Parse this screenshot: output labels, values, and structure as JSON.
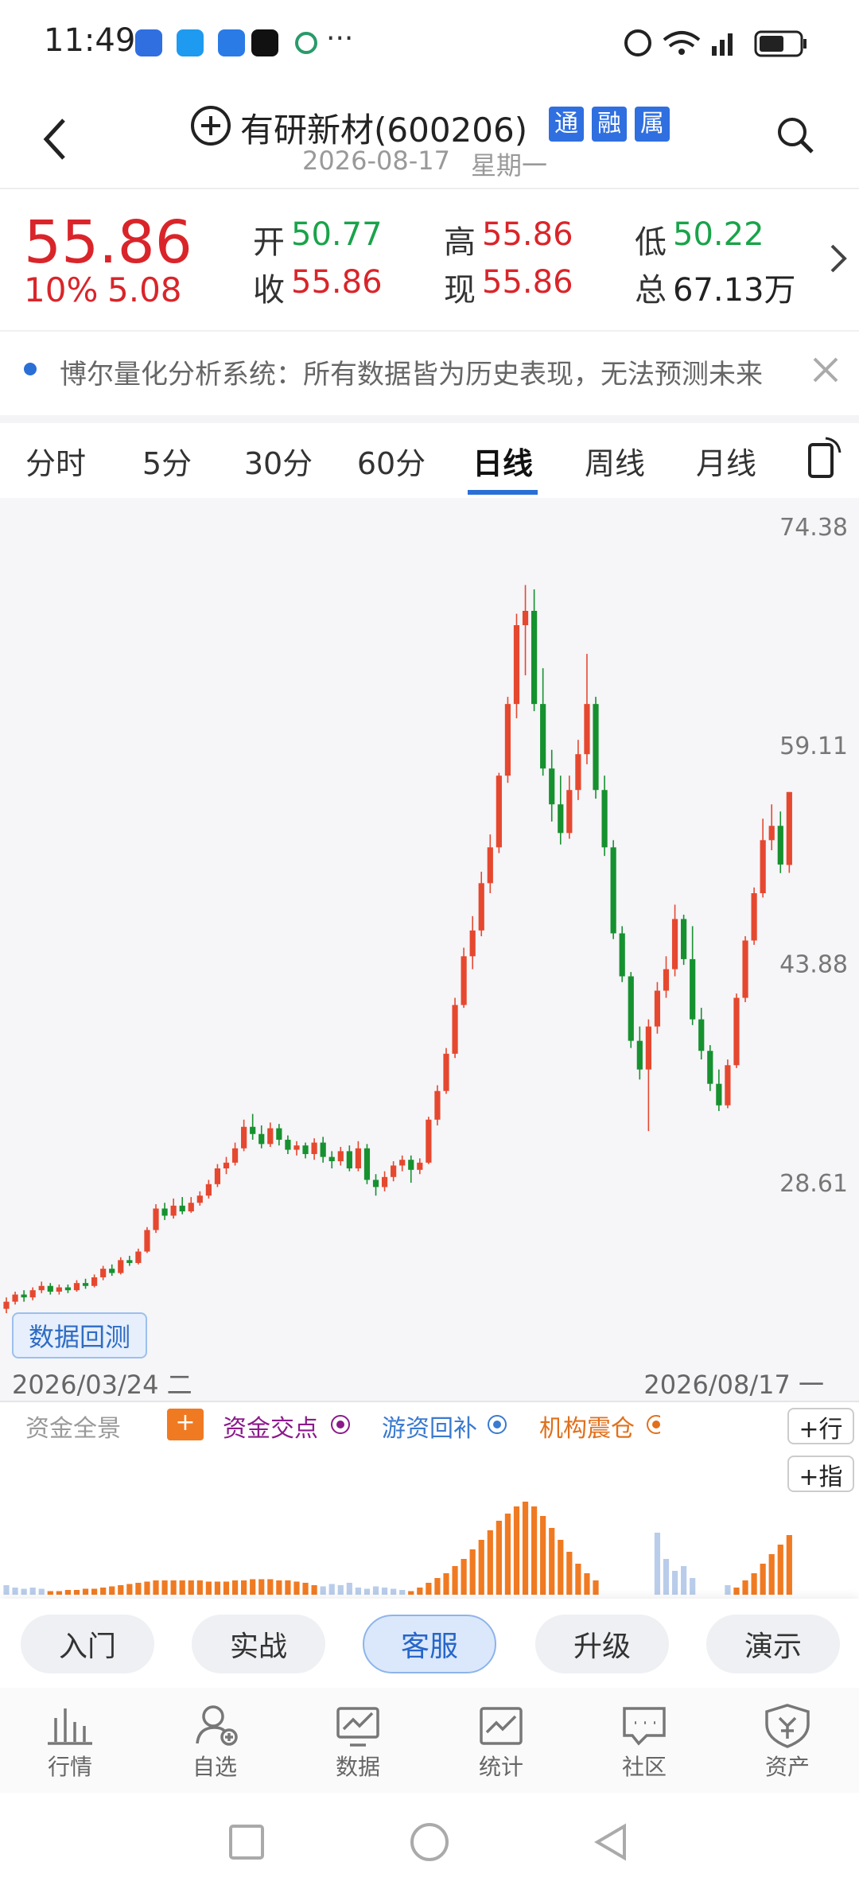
{
  "status": {
    "time": "11:49",
    "more": "···"
  },
  "header": {
    "title": "有研新材(600206)",
    "badges": [
      "通",
      "融",
      "属"
    ],
    "date": "2026-08-17",
    "weekday": "星期一"
  },
  "quote": {
    "price": "55.86",
    "change_pct": "10%",
    "change": "5.08",
    "items": [
      {
        "label": "开",
        "value": "50.77",
        "color": "#1aa34a"
      },
      {
        "label": "高",
        "value": "55.86",
        "color": "#d9252a"
      },
      {
        "label": "低",
        "value": "50.22",
        "color": "#1aa34a"
      },
      {
        "label": "收",
        "value": "55.86",
        "color": "#d9252a"
      },
      {
        "label": "现",
        "value": "55.86",
        "color": "#d9252a"
      },
      {
        "label": "总",
        "value": "67.13万",
        "color": "#222222"
      }
    ]
  },
  "notice": {
    "text": "博尔量化分析系统：所有数据皆为历史表现，无法预测未来"
  },
  "tabs": {
    "items": [
      "分时",
      "5分",
      "30分",
      "60分",
      "日线",
      "周线",
      "月线"
    ],
    "active": 4
  },
  "chart_data": {
    "type": "candlestick",
    "up_color": "#e5482f",
    "down_color": "#16912f",
    "ylim": [
      16.06,
      76.38
    ],
    "yticks": [
      74.38,
      59.11,
      43.88,
      28.61
    ],
    "x_start": "2026/03/24 二",
    "x_end": "2026/08/17 一",
    "backtest": "数据回测",
    "candles": [
      [
        19.8,
        20.3,
        20.6,
        19.5
      ],
      [
        20.3,
        20.8,
        21.0,
        20.1
      ],
      [
        20.8,
        20.6,
        21.1,
        20.3
      ],
      [
        20.6,
        21.1,
        21.3,
        20.4
      ],
      [
        21.1,
        21.4,
        21.7,
        20.9
      ],
      [
        21.4,
        21.0,
        21.6,
        20.8
      ],
      [
        21.0,
        21.3,
        21.5,
        20.8
      ],
      [
        21.3,
        21.1,
        21.5,
        20.9
      ],
      [
        21.1,
        21.6,
        21.8,
        21.0
      ],
      [
        21.6,
        21.4,
        21.9,
        21.2
      ],
      [
        21.4,
        22.0,
        22.2,
        21.3
      ],
      [
        22.0,
        22.6,
        22.8,
        21.8
      ],
      [
        22.6,
        22.3,
        22.9,
        22.1
      ],
      [
        22.3,
        23.2,
        23.4,
        22.2
      ],
      [
        23.2,
        23.0,
        23.5,
        22.8
      ],
      [
        23.0,
        23.8,
        24.0,
        22.9
      ],
      [
        23.8,
        25.3,
        25.5,
        23.7
      ],
      [
        25.3,
        26.8,
        27.1,
        25.1
      ],
      [
        26.8,
        26.3,
        27.2,
        26.0
      ],
      [
        26.3,
        27.0,
        27.5,
        26.1
      ],
      [
        27.0,
        26.6,
        27.6,
        26.4
      ],
      [
        26.6,
        27.2,
        27.6,
        26.5
      ],
      [
        27.2,
        27.7,
        28.0,
        27.0
      ],
      [
        27.7,
        28.5,
        28.8,
        27.5
      ],
      [
        28.5,
        29.6,
        29.9,
        28.3
      ],
      [
        29.6,
        30.0,
        30.4,
        29.2
      ],
      [
        30.0,
        31.0,
        31.4,
        29.8
      ],
      [
        31.0,
        32.5,
        33.0,
        30.8
      ],
      [
        32.5,
        32.0,
        33.4,
        31.6
      ],
      [
        32.0,
        31.3,
        32.6,
        31.0
      ],
      [
        31.3,
        32.4,
        32.8,
        31.1
      ],
      [
        32.4,
        31.6,
        32.7,
        31.2
      ],
      [
        31.6,
        30.9,
        31.9,
        30.6
      ],
      [
        30.9,
        31.2,
        31.5,
        30.5
      ],
      [
        31.2,
        30.6,
        31.4,
        30.3
      ],
      [
        30.6,
        31.4,
        31.7,
        30.2
      ],
      [
        31.4,
        30.4,
        31.8,
        30.0
      ],
      [
        30.4,
        30.1,
        30.8,
        29.6
      ],
      [
        30.1,
        30.8,
        31.1,
        29.8
      ],
      [
        30.8,
        29.6,
        31.2,
        29.4
      ],
      [
        29.6,
        31.0,
        31.5,
        29.4
      ],
      [
        31.0,
        28.8,
        31.3,
        28.5
      ],
      [
        28.8,
        28.3,
        29.2,
        27.7
      ],
      [
        28.3,
        29.0,
        29.4,
        28.0
      ],
      [
        29.0,
        29.8,
        30.1,
        28.7
      ],
      [
        29.8,
        30.2,
        30.5,
        29.4
      ],
      [
        30.2,
        29.5,
        30.5,
        28.6
      ],
      [
        29.5,
        30.0,
        30.3,
        29.2
      ],
      [
        30.0,
        33.0,
        33.2,
        29.9
      ],
      [
        33.0,
        35.0,
        35.4,
        32.6
      ],
      [
        35.0,
        37.6,
        38.0,
        34.8
      ],
      [
        37.6,
        41.0,
        41.5,
        37.3
      ],
      [
        41.0,
        44.4,
        45.0,
        40.8
      ],
      [
        44.4,
        46.2,
        47.2,
        43.5
      ],
      [
        46.2,
        49.5,
        50.3,
        45.8
      ],
      [
        49.5,
        52.0,
        52.9,
        48.8
      ],
      [
        52.0,
        57.0,
        57.2,
        51.6
      ],
      [
        57.0,
        62.0,
        62.5,
        56.5
      ],
      [
        62.0,
        67.5,
        68.3,
        61.0
      ],
      [
        67.5,
        68.5,
        70.3,
        64.0
      ],
      [
        68.5,
        62.0,
        70.0,
        61.5
      ],
      [
        62.0,
        57.5,
        64.5,
        57.0
      ],
      [
        57.5,
        55.0,
        58.8,
        53.8
      ],
      [
        55.0,
        53.0,
        57.0,
        52.2
      ],
      [
        53.0,
        56.0,
        57.0,
        52.6
      ],
      [
        56.0,
        58.5,
        59.5,
        55.3
      ],
      [
        58.5,
        62.0,
        65.5,
        57.8
      ],
      [
        62.0,
        56.0,
        62.5,
        55.4
      ],
      [
        56.0,
        52.0,
        57.0,
        51.4
      ],
      [
        52.0,
        46.0,
        52.5,
        45.6
      ],
      [
        46.0,
        43.0,
        46.5,
        42.6
      ],
      [
        43.0,
        38.5,
        43.3,
        38.0
      ],
      [
        38.5,
        36.5,
        39.5,
        35.8
      ],
      [
        36.5,
        39.5,
        40.0,
        32.2
      ],
      [
        39.5,
        42.0,
        42.6,
        39.0
      ],
      [
        42.0,
        43.5,
        44.4,
        41.5
      ],
      [
        43.5,
        47.0,
        48.0,
        43.0
      ],
      [
        47.0,
        44.2,
        47.3,
        43.8
      ],
      [
        44.2,
        40.0,
        46.5,
        39.6
      ],
      [
        40.0,
        37.8,
        40.8,
        37.2
      ],
      [
        37.8,
        35.5,
        38.2,
        35.0
      ],
      [
        35.5,
        34.0,
        36.5,
        33.6
      ],
      [
        34.0,
        36.8,
        37.2,
        33.8
      ],
      [
        36.8,
        41.5,
        41.8,
        36.6
      ],
      [
        41.5,
        45.5,
        45.8,
        41.2
      ],
      [
        45.5,
        48.8,
        49.2,
        45.2
      ],
      [
        48.8,
        52.5,
        54.0,
        48.5
      ],
      [
        52.5,
        53.5,
        55.0,
        51.8
      ],
      [
        53.5,
        50.8,
        54.5,
        50.2
      ],
      [
        50.77,
        55.86,
        55.86,
        50.22
      ]
    ]
  },
  "fund": {
    "legend": [
      "资金全景",
      "资金交点",
      "游资回补",
      "机构震仓"
    ],
    "plus": "+",
    "buttons": [
      "+行",
      "+指"
    ],
    "orange_color": "#f07a22",
    "blue_color": "#b9cdea",
    "orange": [
      null,
      null,
      null,
      null,
      null,
      3,
      3,
      4,
      4,
      5,
      5,
      6,
      7,
      8,
      9,
      10,
      11,
      12,
      12,
      12,
      12,
      12,
      12,
      11,
      11,
      11,
      12,
      12,
      13,
      13,
      13,
      12,
      12,
      11,
      10,
      8,
      null,
      null,
      null,
      null,
      null,
      null,
      null,
      null,
      null,
      null,
      3,
      6,
      10,
      14,
      18,
      24,
      30,
      38,
      46,
      54,
      62,
      68,
      74,
      78,
      74,
      66,
      56,
      46,
      36,
      26,
      18,
      12,
      null,
      null,
      null,
      null,
      null,
      null,
      null,
      null,
      null,
      null,
      null,
      null,
      null,
      null,
      null,
      6,
      12,
      18,
      26,
      34,
      42,
      50
    ],
    "blue": [
      8,
      6,
      5,
      6,
      5,
      null,
      null,
      null,
      null,
      null,
      null,
      null,
      null,
      null,
      null,
      null,
      null,
      null,
      null,
      null,
      null,
      null,
      null,
      null,
      null,
      null,
      null,
      null,
      null,
      null,
      null,
      null,
      null,
      null,
      null,
      null,
      7,
      9,
      8,
      10,
      6,
      5,
      7,
      6,
      5,
      4,
      null,
      null,
      null,
      null,
      null,
      null,
      null,
      null,
      null,
      null,
      null,
      null,
      null,
      null,
      null,
      null,
      null,
      null,
      null,
      null,
      null,
      null,
      null,
      null,
      null,
      null,
      null,
      null,
      52,
      30,
      20,
      24,
      14,
      null,
      null,
      null,
      8,
      null,
      null,
      null,
      null,
      null,
      null,
      null
    ]
  },
  "actions": {
    "items": [
      "入门",
      "实战",
      "客服",
      "升级",
      "演示"
    ],
    "active": 2
  },
  "nav": {
    "items": [
      "行情",
      "自选",
      "数据",
      "统计",
      "社区",
      "资产"
    ]
  }
}
